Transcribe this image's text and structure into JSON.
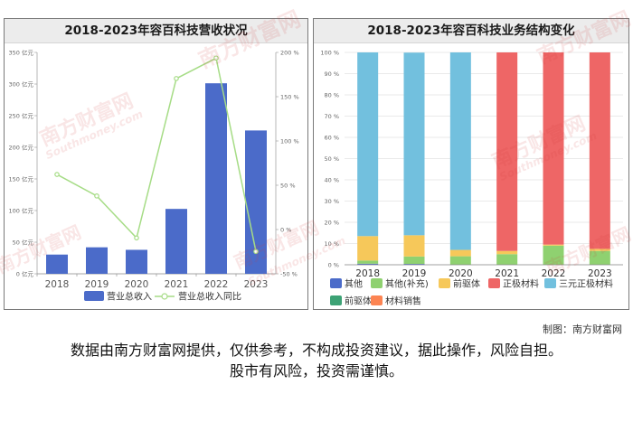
{
  "chart_data": [
    {
      "type": "bar",
      "title": "2018-2023年容百科技营收状况",
      "categories": [
        "2018",
        "2019",
        "2020",
        "2021",
        "2022",
        "2023"
      ],
      "series": [
        {
          "name": "营业总收入",
          "kind": "bar",
          "axis": "left",
          "color": "#4b6bc9",
          "values": [
            30.4,
            41.9,
            37.9,
            102.6,
            301.2,
            226.6
          ]
        },
        {
          "name": "营业总收入同比",
          "kind": "line",
          "axis": "right",
          "color": "#a6dc86",
          "values": [
            62.2,
            37.9,
            -9.5,
            170.5,
            193.6,
            -24.8
          ]
        }
      ],
      "ylim": [
        0,
        350
      ],
      "y_ticks": [
        "0 亿元",
        "50 亿元",
        "100 亿元",
        "150 亿元",
        "200 亿元",
        "250 亿元",
        "300 亿元",
        "350 亿元"
      ],
      "y2lim": [
        -50,
        200
      ],
      "y2_ticks": [
        "-50 %",
        "0 %",
        "50 %",
        "100 %",
        "150 %",
        "200 %"
      ],
      "grid": false,
      "legend": "bottom"
    },
    {
      "type": "bar",
      "stacked": true,
      "title": "2018-2023年容百科技业务结构变化",
      "categories": [
        "2018",
        "2019",
        "2020",
        "2021",
        "2022",
        "2023"
      ],
      "series": [
        {
          "name": "其他",
          "color": "#4b6bc9",
          "values": [
            0.5,
            0.4,
            0,
            0,
            0,
            0
          ]
        },
        {
          "name": "其他(补充)",
          "color": "#8fd170",
          "values": [
            1.5,
            3.5,
            4,
            5,
            9,
            6.5
          ]
        },
        {
          "name": "前驱体",
          "color": "#f6c85a",
          "values": [
            11.5,
            10,
            3,
            1.5,
            0.5,
            1
          ]
        },
        {
          "name": "正极材料",
          "color": "#ee6666",
          "values": [
            0,
            0,
            0,
            93.5,
            90.5,
            92.5
          ]
        },
        {
          "name": "三元正极材料",
          "color": "#72c0de",
          "values": [
            86.5,
            86,
            93,
            0,
            0,
            0
          ]
        },
        {
          "name": "前驱体",
          "color": "#3da275",
          "values": [
            0,
            0,
            0,
            0,
            0,
            0
          ]
        },
        {
          "name": "材料销售",
          "color": "#fc8452",
          "values": [
            0,
            0,
            0,
            0,
            0,
            0
          ]
        }
      ],
      "ylim": [
        0,
        100
      ],
      "y_ticks": [
        "0 %",
        "10 %",
        "20 %",
        "30 %",
        "40 %",
        "50 %",
        "60 %",
        "70 %",
        "80 %",
        "90 %",
        "100 %"
      ],
      "grid": true,
      "legend": "bottom"
    }
  ],
  "watermarks": [
    "南方财富网",
    "Southmoney.com",
    "S"
  ],
  "credit": "制图：南方财富网",
  "disclaimer": {
    "line1": "数据由南方财富网提供，仅供参考，不构成投资建议，据此操作，风险自担。",
    "line2": "股市有风险，投资需谨慎。"
  }
}
